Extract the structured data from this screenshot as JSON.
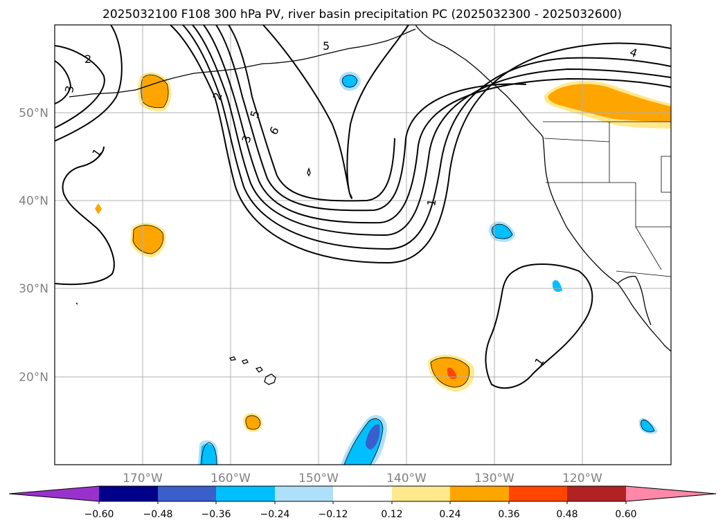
{
  "title": "2025032100 F108 300 hPa PV, river basin precipitation PC (2025032300 - 2025032600)",
  "map": {
    "lon_range": [
      -180,
      -110
    ],
    "lat_range": [
      10,
      60
    ],
    "lat_ticks": [
      {
        "value": 50,
        "label": "50°N"
      },
      {
        "value": 40,
        "label": "40°N"
      },
      {
        "value": 30,
        "label": "30°N"
      },
      {
        "value": 20,
        "label": "20°N"
      }
    ],
    "lon_ticks": [
      {
        "value": -170,
        "label": "170°W"
      },
      {
        "value": -160,
        "label": "160°W"
      },
      {
        "value": -150,
        "label": "150°W"
      },
      {
        "value": -140,
        "label": "140°W"
      },
      {
        "value": -130,
        "label": "130°W"
      },
      {
        "value": -120,
        "label": "120°W"
      }
    ],
    "grid": true,
    "contour_labels": [
      "2",
      "3",
      "1",
      "2",
      "5",
      "3",
      "6",
      "5",
      "1",
      "4",
      "1"
    ]
  },
  "colorbar": {
    "tick_labels": [
      "−0.60",
      "−0.48",
      "−0.36",
      "−0.24",
      "−0.12",
      "0.12",
      "0.24",
      "0.36",
      "0.48",
      "0.60"
    ],
    "colors": [
      "#9932cc",
      "#00008b",
      "#3a5fcd",
      "#00bfff",
      "#afe0f9",
      "#ffffff",
      "#ffe98c",
      "#ffa500",
      "#ff4500",
      "#b22222",
      "#ff88a8"
    ]
  }
}
